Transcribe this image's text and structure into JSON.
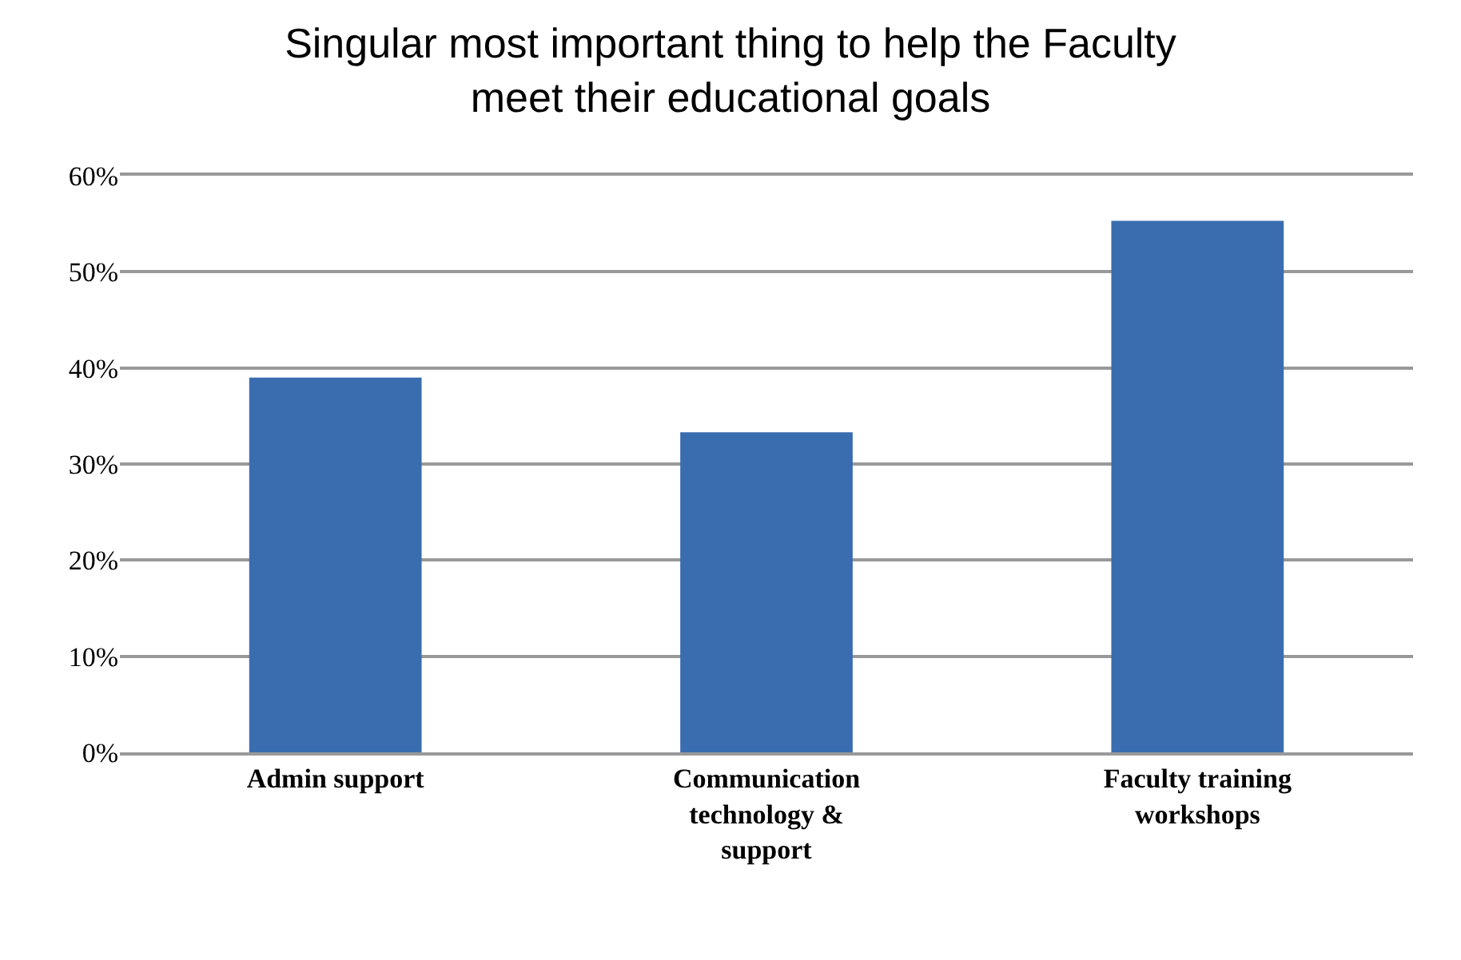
{
  "chart_data": {
    "type": "bar",
    "title": "Singular most important thing to help the Faculty meet their educational goals",
    "categories": [
      "Admin support",
      "Communication technology & support",
      "Faculty training workshops"
    ],
    "values": [
      39,
      33.3,
      55.3
    ],
    "color": "#3a6db0",
    "ylim": [
      0,
      60
    ],
    "yticks": [
      {
        "value": 0,
        "label": "0%"
      },
      {
        "value": 10,
        "label": "10%"
      },
      {
        "value": 20,
        "label": "20%"
      },
      {
        "value": 30,
        "label": "30%"
      },
      {
        "value": 40,
        "label": "40%"
      },
      {
        "value": 50,
        "label": "50%"
      },
      {
        "value": 60,
        "label": "60%"
      }
    ],
    "grid": "y"
  }
}
